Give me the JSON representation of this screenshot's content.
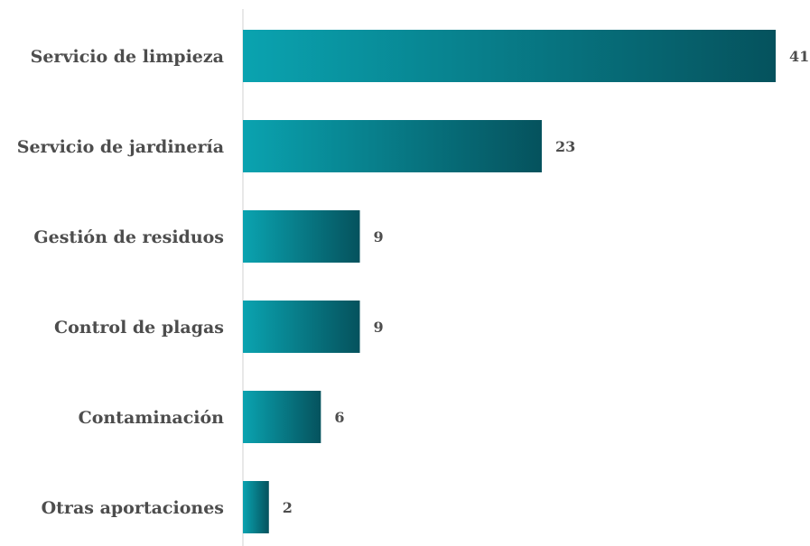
{
  "chart_data": {
    "type": "bar",
    "orientation": "horizontal",
    "title": "",
    "xlabel": "",
    "ylabel": "",
    "categories": [
      "Servicio de limpieza",
      "Servicio de jardinería",
      "Gestión de residuos",
      "Control de plagas",
      "Contaminación",
      "Otras aportaciones"
    ],
    "values": [
      41,
      23,
      9,
      9,
      6,
      2
    ],
    "xlim": [
      0,
      41
    ],
    "grid": false,
    "legend": "none",
    "data_labels": true,
    "colors": {
      "bar_start": "#0aa3b0",
      "bar_end": "#05525d",
      "axis": "#d0d0d0",
      "text": "#4d4d4d"
    }
  }
}
